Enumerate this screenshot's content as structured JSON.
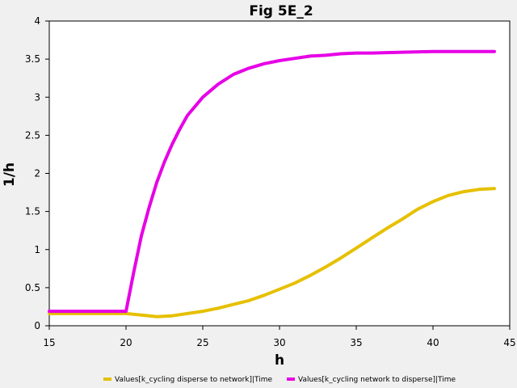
{
  "chart_data": {
    "type": "line",
    "title": "Fig 5E_2",
    "xlabel": "h",
    "ylabel": "1/h",
    "xlim": [
      15,
      45
    ],
    "ylim": [
      0,
      4
    ],
    "x_ticks": [
      "15",
      "20",
      "25",
      "30",
      "35",
      "40",
      "45"
    ],
    "y_ticks": [
      "0",
      "0.5",
      "1",
      "1.5",
      "2",
      "2.5",
      "3",
      "3.5",
      "4"
    ],
    "grid": false,
    "legend_position": "bottom",
    "series": [
      {
        "name": "Values[k_cycling disperse to network]|Time",
        "color": "#e6c000",
        "x": [
          15,
          20,
          21,
          22,
          23,
          24,
          25,
          26,
          27,
          28,
          29,
          30,
          31,
          32,
          33,
          34,
          35,
          36,
          37,
          38,
          39,
          40,
          41,
          42,
          43,
          44
        ],
        "y": [
          0.16,
          0.16,
          0.14,
          0.12,
          0.13,
          0.16,
          0.19,
          0.23,
          0.28,
          0.33,
          0.4,
          0.48,
          0.56,
          0.66,
          0.77,
          0.89,
          1.02,
          1.15,
          1.28,
          1.4,
          1.53,
          1.63,
          1.71,
          1.76,
          1.79,
          1.8
        ]
      },
      {
        "name": "Values[k_cycling network to disperse]|Time",
        "color": "#e600e6",
        "x": [
          15,
          20,
          20.5,
          21,
          21.5,
          22,
          22.5,
          23,
          23.5,
          24,
          25,
          26,
          27,
          28,
          29,
          30,
          31,
          32,
          33,
          34,
          35,
          36,
          38,
          40,
          42,
          44
        ],
        "y": [
          0.19,
          0.19,
          0.7,
          1.18,
          1.55,
          1.88,
          2.15,
          2.38,
          2.58,
          2.76,
          3.0,
          3.17,
          3.3,
          3.38,
          3.44,
          3.48,
          3.51,
          3.54,
          3.55,
          3.57,
          3.58,
          3.58,
          3.59,
          3.6,
          3.6,
          3.6
        ]
      }
    ]
  }
}
